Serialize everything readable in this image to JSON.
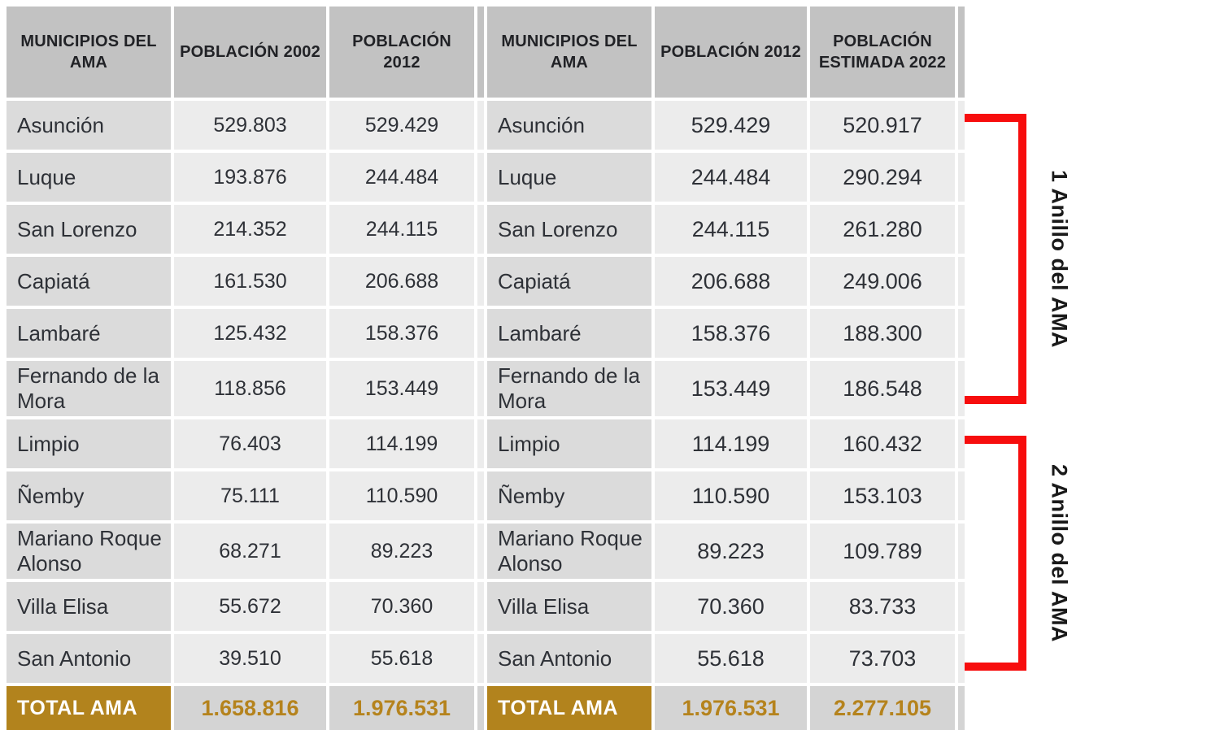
{
  "chart_data": [
    {
      "type": "table",
      "columns": [
        "MUNICIPIOS DEL AMA",
        "POBLACIÓN 2002",
        "POBLACIÓN 2012"
      ],
      "rows": [
        [
          "Asunción",
          "529.803",
          "529.429"
        ],
        [
          "Luque",
          "193.876",
          "244.484"
        ],
        [
          "San Lorenzo",
          "214.352",
          "244.115"
        ],
        [
          "Capiatá",
          "161.530",
          "206.688"
        ],
        [
          "Lambaré",
          "125.432",
          "158.376"
        ],
        [
          "Fernando de la Mora",
          "118.856",
          "153.449"
        ],
        [
          "Limpio",
          "76.403",
          "114.199"
        ],
        [
          "Ñemby",
          "75.111",
          "110.590"
        ],
        [
          "Mariano Roque Alonso",
          "68.271",
          "89.223"
        ],
        [
          "Villa Elisa",
          "55.672",
          "70.360"
        ],
        [
          "San Antonio",
          "39.510",
          "55.618"
        ]
      ],
      "total_row": [
        "TOTAL AMA",
        "1.658.816",
        "1.976.531"
      ]
    },
    {
      "type": "table",
      "columns": [
        "MUNICIPIOS DEL AMA",
        "POBLACIÓN 2012",
        "POBLACIÓN ESTIMADA 2022"
      ],
      "rows": [
        [
          "Asunción",
          "529.429",
          "520.917"
        ],
        [
          "Luque",
          "244.484",
          "290.294"
        ],
        [
          "San Lorenzo",
          "244.115",
          "261.280"
        ],
        [
          "Capiatá",
          "206.688",
          "249.006"
        ],
        [
          "Lambaré",
          "158.376",
          "188.300"
        ],
        [
          "Fernando de la Mora",
          "153.449",
          "186.548"
        ],
        [
          "Limpio",
          "114.199",
          "160.432"
        ],
        [
          "Ñemby",
          "110.590",
          "153.103"
        ],
        [
          "Mariano Roque Alonso",
          "89.223",
          "109.789"
        ],
        [
          "Villa Elisa",
          "70.360",
          "83.733"
        ],
        [
          "San Antonio",
          "55.618",
          "73.703"
        ]
      ],
      "total_row": [
        "TOTAL AMA",
        "1.976.531",
        "2.277.105"
      ]
    }
  ],
  "annotations": [
    {
      "label": "1 Anillo del AMA",
      "first_row": "Asunción",
      "last_row": "Fernando de la Mora"
    },
    {
      "label": "2 Anillo del AMA",
      "first_row": "Limpio",
      "last_row": "San Antonio"
    }
  ],
  "colors": {
    "header_bg": "#c2c2c2",
    "name_cell_bg": "#dbdbdb",
    "value_cell_bg": "#ececec",
    "total_label_bg": "#b2831d",
    "total_value_bg": "#d4d4d4",
    "total_value_text": "#b5831d",
    "total_label_text": "#ffffff",
    "body_text": "#2e3137",
    "header_text": "#212226",
    "bracket_red": "#f70d0d",
    "annotation_text": "#1a1a1a"
  }
}
